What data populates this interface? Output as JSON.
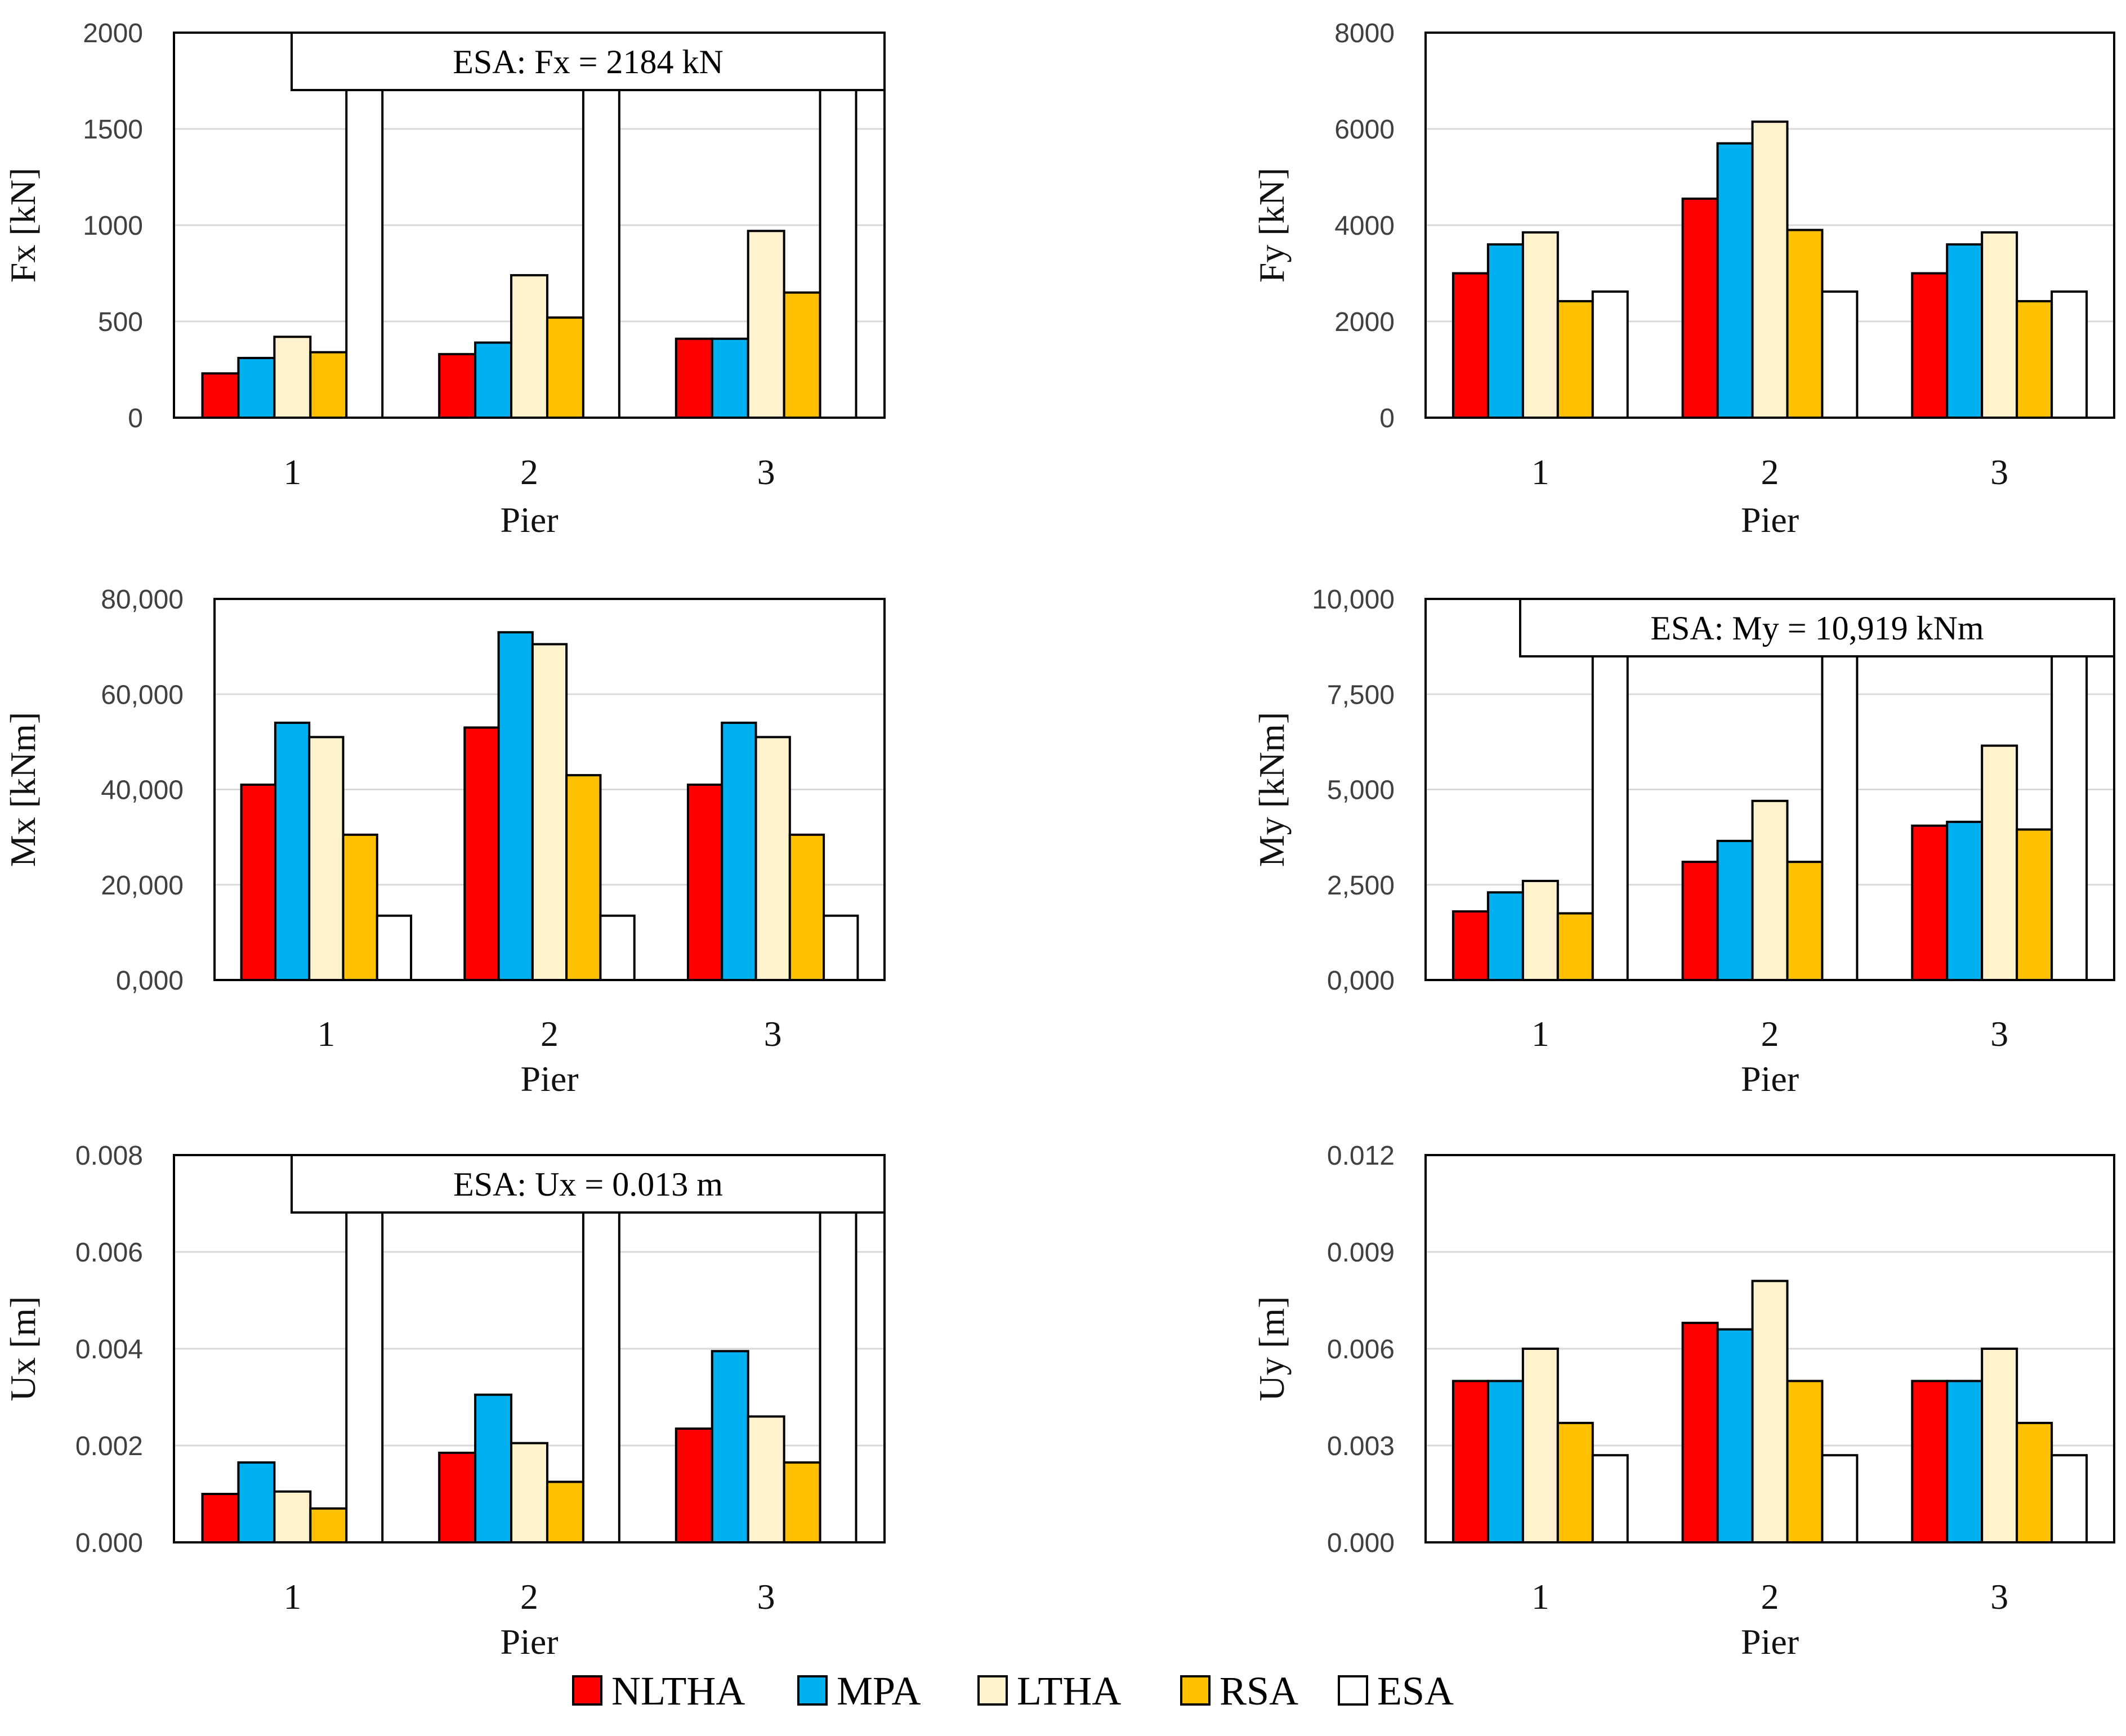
{
  "chart_data": [
    {
      "type": "bar",
      "categories": [
        "1",
        "2",
        "3"
      ],
      "xlabel": "Pier",
      "ylabel": "Fx [kN]",
      "ylim": [
        0,
        2000
      ],
      "yticks": [
        "0",
        "500",
        "1000",
        "1500",
        "2000"
      ],
      "grid": true,
      "annotation": "ESA:   Fx = 2184 kN",
      "series": [
        {
          "name": "NLTHA",
          "values": [
            230,
            330,
            410
          ]
        },
        {
          "name": "MPA",
          "values": [
            310,
            390,
            410
          ]
        },
        {
          "name": "LTHA",
          "values": [
            420,
            740,
            970
          ]
        },
        {
          "name": "RSA",
          "values": [
            340,
            520,
            650
          ]
        },
        {
          "name": "ESA",
          "values": [
            2184,
            2184,
            2184
          ]
        }
      ]
    },
    {
      "type": "bar",
      "categories": [
        "1",
        "2",
        "3"
      ],
      "xlabel": "Pier",
      "ylabel": "Fy [kN]",
      "ylim": [
        0,
        8000
      ],
      "yticks": [
        "0",
        "2000",
        "4000",
        "6000",
        "8000"
      ],
      "grid": true,
      "annotation": null,
      "series": [
        {
          "name": "NLTHA",
          "values": [
            3000,
            4550,
            3000
          ]
        },
        {
          "name": "MPA",
          "values": [
            3600,
            5700,
            3600
          ]
        },
        {
          "name": "LTHA",
          "values": [
            3850,
            6150,
            3850
          ]
        },
        {
          "name": "RSA",
          "values": [
            2420,
            3900,
            2420
          ]
        },
        {
          "name": "ESA",
          "values": [
            2620,
            2620,
            2620
          ]
        }
      ]
    },
    {
      "type": "bar",
      "categories": [
        "1",
        "2",
        "3"
      ],
      "xlabel": "Pier",
      "ylabel": "Mx [kNm]",
      "ylim": [
        0,
        80000
      ],
      "yticks": [
        "0,000",
        "20,000",
        "40,000",
        "60,000",
        "80,000"
      ],
      "grid": true,
      "annotation": null,
      "series": [
        {
          "name": "NLTHA",
          "values": [
            41000,
            53000,
            41000
          ]
        },
        {
          "name": "MPA",
          "values": [
            54000,
            73000,
            54000
          ]
        },
        {
          "name": "LTHA",
          "values": [
            51000,
            70500,
            51000
          ]
        },
        {
          "name": "RSA",
          "values": [
            30500,
            43000,
            30500
          ]
        },
        {
          "name": "ESA",
          "values": [
            13500,
            13500,
            13500
          ]
        }
      ]
    },
    {
      "type": "bar",
      "categories": [
        "1",
        "2",
        "3"
      ],
      "xlabel": "Pier",
      "ylabel": "My [kNm]",
      "ylim": [
        0,
        10000
      ],
      "yticks": [
        "0,000",
        "2,500",
        "5,000",
        "7,500",
        "10,000"
      ],
      "grid": true,
      "annotation": "ESA:   My = 10,919 kNm",
      "series": [
        {
          "name": "NLTHA",
          "values": [
            1800,
            3100,
            4050
          ]
        },
        {
          "name": "MPA",
          "values": [
            2300,
            3650,
            4150
          ]
        },
        {
          "name": "LTHA",
          "values": [
            2600,
            4700,
            6150
          ]
        },
        {
          "name": "RSA",
          "values": [
            1750,
            3100,
            3950
          ]
        },
        {
          "name": "ESA",
          "values": [
            10919,
            10919,
            10919
          ]
        }
      ]
    },
    {
      "type": "bar",
      "categories": [
        "1",
        "2",
        "3"
      ],
      "xlabel": "Pier",
      "ylabel": "Ux [m]",
      "ylim": [
        0,
        0.008
      ],
      "yticks": [
        "0.000",
        "0.002",
        "0.004",
        "0.006",
        "0.008"
      ],
      "grid": true,
      "annotation": "ESA:   Ux = 0.013 m",
      "series": [
        {
          "name": "NLTHA",
          "values": [
            0.001,
            0.00185,
            0.00235
          ]
        },
        {
          "name": "MPA",
          "values": [
            0.00165,
            0.00305,
            0.00395
          ]
        },
        {
          "name": "LTHA",
          "values": [
            0.00105,
            0.00205,
            0.0026
          ]
        },
        {
          "name": "RSA",
          "values": [
            0.0007,
            0.00125,
            0.00165
          ]
        },
        {
          "name": "ESA",
          "values": [
            0.013,
            0.013,
            0.013
          ]
        }
      ]
    },
    {
      "type": "bar",
      "categories": [
        "1",
        "2",
        "3"
      ],
      "xlabel": "Pier",
      "ylabel": "Uy [m]",
      "ylim": [
        0,
        0.012
      ],
      "yticks": [
        "0.000",
        "0.003",
        "0.006",
        "0.009",
        "0.012"
      ],
      "grid": true,
      "annotation": null,
      "series": [
        {
          "name": "NLTHA",
          "values": [
            0.005,
            0.0068,
            0.005
          ]
        },
        {
          "name": "MPA",
          "values": [
            0.005,
            0.0066,
            0.005
          ]
        },
        {
          "name": "LTHA",
          "values": [
            0.006,
            0.0081,
            0.006
          ]
        },
        {
          "name": "RSA",
          "values": [
            0.0037,
            0.005,
            0.0037
          ]
        },
        {
          "name": "ESA",
          "values": [
            0.0027,
            0.0027,
            0.0027
          ]
        }
      ]
    }
  ],
  "legend": {
    "items": [
      {
        "name": "NLTHA",
        "color": "#ff0000"
      },
      {
        "name": "MPA",
        "color": "#00b0f0"
      },
      {
        "name": "LTHA",
        "color": "#fff2cc"
      },
      {
        "name": "RSA",
        "color": "#ffc000"
      },
      {
        "name": "ESA",
        "color": "#ffffff"
      }
    ]
  }
}
